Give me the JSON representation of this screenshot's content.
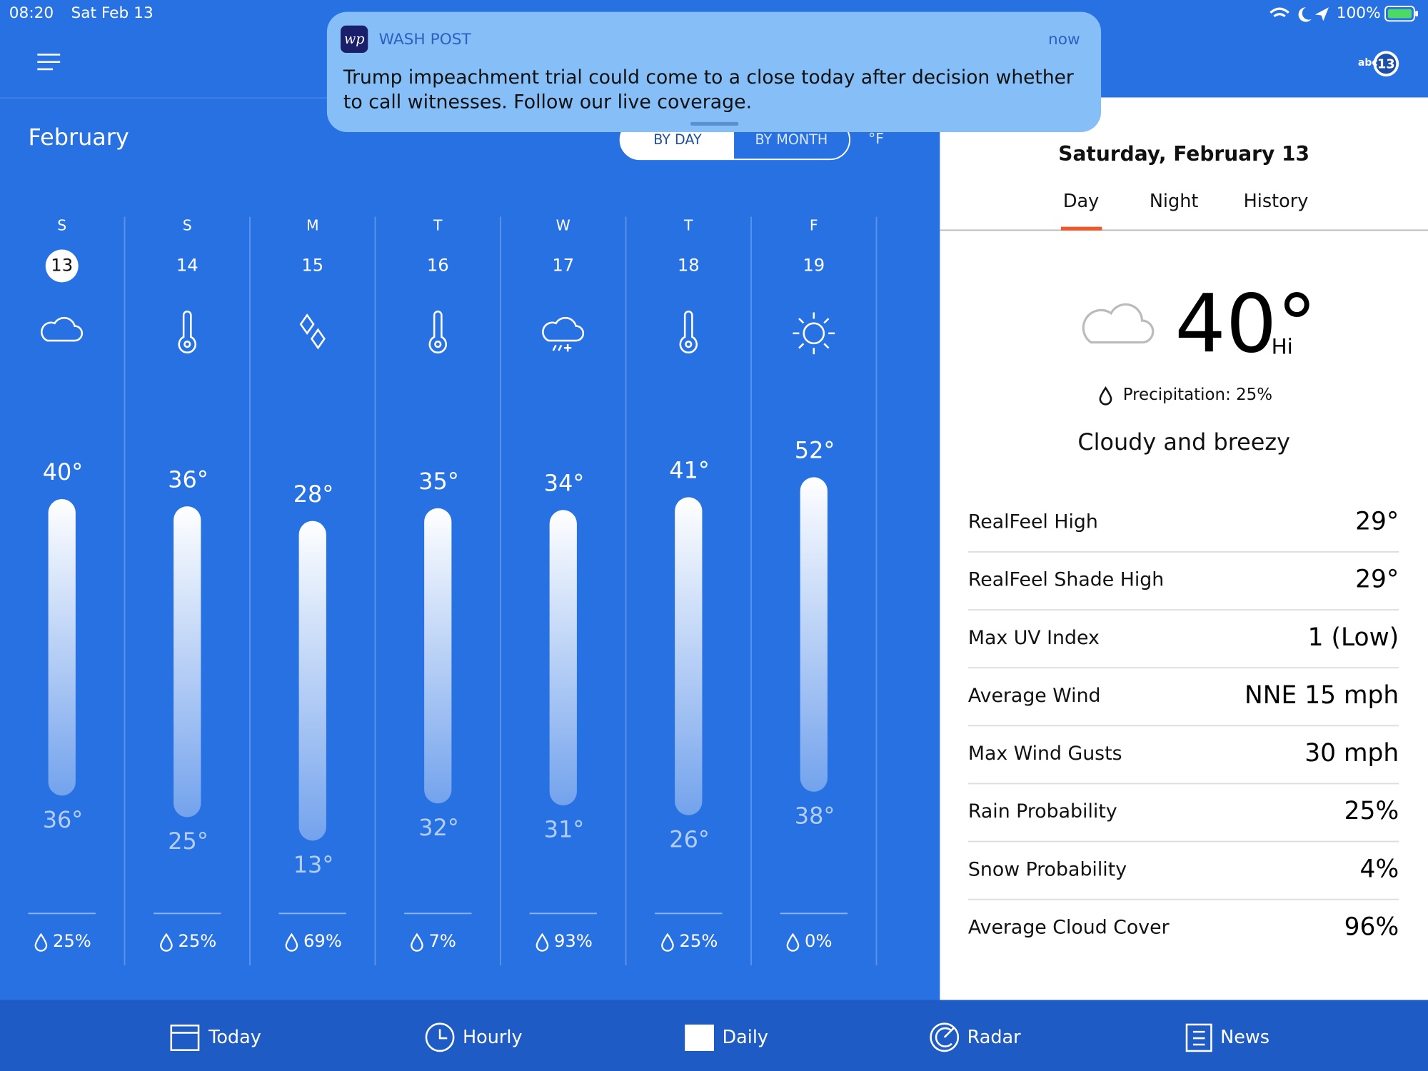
{
  "status_bar": {
    "time": "08:20",
    "date": "Sat Feb 13",
    "battery": "100%"
  },
  "notification": {
    "logo": "wp",
    "app": "WASH POST",
    "time": "now",
    "message_lines": [
      "Trump impeachment trial could come to a close today after decision whether",
      "to call witnesses. Follow our live coverage."
    ]
  },
  "header": {
    "station_logo": {
      "prefix": "abc",
      "number": "13"
    }
  },
  "calendar": {
    "month": "February",
    "toggle": [
      "BY DAY",
      "BY MONTH"
    ],
    "unit": "°F",
    "days": [
      {
        "weekday": "S",
        "date": "13",
        "high": {
          "value": 40,
          "label": "40°"
        },
        "low": {
          "value": 36,
          "label": "36°"
        },
        "precipitation": "25%"
      },
      {
        "weekday": "S",
        "date": "14",
        "high": {
          "value": 36,
          "label": "36°"
        },
        "low": {
          "value": 25,
          "label": "25°"
        },
        "precipitation": "25%"
      },
      {
        "weekday": "M",
        "date": "15",
        "high": {
          "value": 28,
          "label": "28°"
        },
        "low": {
          "value": 13,
          "label": "13°"
        },
        "precipitation": "69%"
      },
      {
        "weekday": "T",
        "date": "16",
        "high": {
          "value": 35,
          "label": "35°"
        },
        "low": {
          "value": 32,
          "label": "32°"
        },
        "precipitation": "7%"
      },
      {
        "weekday": "W",
        "date": "17",
        "high": {
          "value": 34,
          "label": "34°"
        },
        "low": {
          "value": 31,
          "label": "31°"
        },
        "precipitation": "93%"
      },
      {
        "weekday": "T",
        "date": "18",
        "high": {
          "value": 41,
          "label": "41°"
        },
        "low": {
          "value": 26,
          "label": "26°"
        },
        "precipitation": "25%"
      },
      {
        "weekday": "F",
        "date": "19",
        "high": {
          "value": 52,
          "label": "52°"
        },
        "low": {
          "value": 38,
          "label": "38°"
        },
        "precipitation": "0%"
      }
    ]
  },
  "detail": {
    "title": "Saturday, February 13",
    "tabs": [
      "Day",
      "Night",
      "History"
    ],
    "temperature": "40°",
    "temperature_label": "Hi",
    "precipitation": "Precipitation: 25%",
    "condition": "Cloudy and breezy",
    "rows": [
      [
        "RealFeel High",
        "29°"
      ],
      [
        "RealFeel Shade High",
        "29°"
      ],
      [
        "Max UV Index",
        "1 (Low)"
      ],
      [
        "Average Wind",
        "NNE 15 mph"
      ],
      [
        "Max Wind Gusts",
        "30 mph"
      ],
      [
        "Rain Probability",
        "25%"
      ],
      [
        "Snow Probability",
        "4%"
      ],
      [
        "Average Cloud Cover",
        "96%"
      ]
    ]
  },
  "tab_bar": [
    "Today",
    "Hourly",
    "Daily",
    "Radar",
    "News"
  ]
}
